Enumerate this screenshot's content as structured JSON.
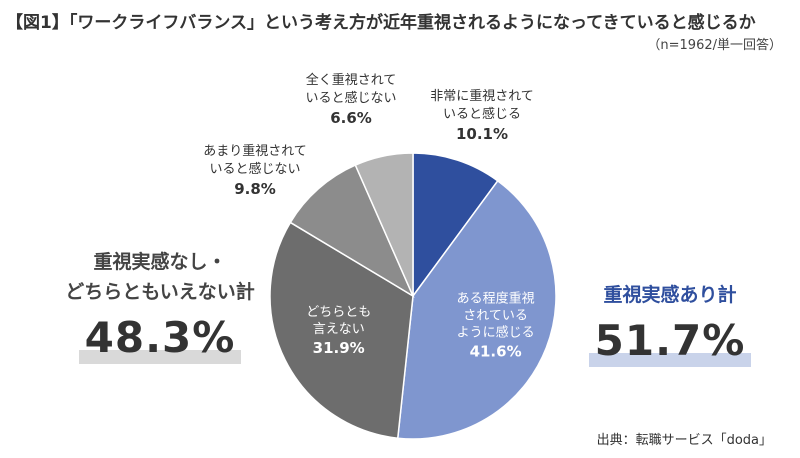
{
  "title": "【図1】「ワークライフバランス」という考え方が近年重視されるようになってきていると感じるか",
  "note": "（n=1962/単一回答）",
  "source": "出典：転職サービス「doda」",
  "groups": {
    "negative": {
      "label_line1": "重視実感なし・",
      "label_line2": "どちらともいえない計",
      "value": "48.3%",
      "color": "#444444",
      "highlight": "#d9d9d9"
    },
    "positive": {
      "label": "重視実感あり計",
      "value": "51.7%",
      "color": "#2f4f9e",
      "highlight": "#c9d3ea"
    }
  },
  "chart_data": {
    "type": "pie",
    "title": "「ワークライフバランス」という考え方が近年重視されるようになってきていると感じるか",
    "start": "12 o'clock",
    "direction": "clockwise",
    "slices": [
      {
        "label_lines": [
          "非常に重視されて",
          "いると感じる"
        ],
        "value": 10.1,
        "value_text": "10.1%",
        "color": "#2f4f9e",
        "label_placement": "outside"
      },
      {
        "label_lines": [
          "ある程度重視",
          "されている",
          "ように感じる"
        ],
        "value": 41.6,
        "value_text": "41.6%",
        "color": "#7f96cf",
        "label_placement": "inside"
      },
      {
        "label_lines": [
          "どちらとも",
          "言えない"
        ],
        "value": 31.9,
        "value_text": "31.9%",
        "color": "#6d6d6d",
        "label_placement": "inside"
      },
      {
        "label_lines": [
          "あまり重視されて",
          "いると感じない"
        ],
        "value": 9.8,
        "value_text": "9.8%",
        "color": "#8c8c8c",
        "label_placement": "outside"
      },
      {
        "label_lines": [
          "全く重視されて",
          "いると感じない"
        ],
        "value": 6.6,
        "value_text": "6.6%",
        "color": "#b3b3b3",
        "label_placement": "outside"
      }
    ]
  }
}
